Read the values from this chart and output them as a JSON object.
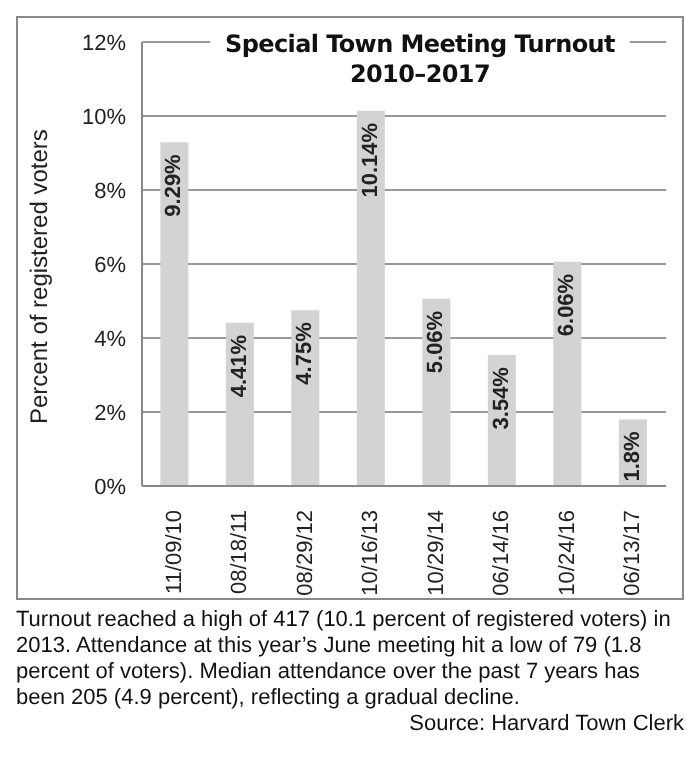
{
  "chart_data": {
    "type": "bar",
    "title": "Special Town Meeting Turnout",
    "subtitle": "2010–2017",
    "ylabel": "Percent of registered voters",
    "categories": [
      "11/09/10",
      "08/18/11",
      "08/29/12",
      "10/16/13",
      "10/29/14",
      "06/14/16",
      "10/24/16",
      "06/13/17"
    ],
    "values": [
      9.29,
      4.41,
      4.75,
      10.14,
      5.06,
      3.54,
      6.06,
      1.8
    ],
    "value_labels": [
      "9.29%",
      "4.41%",
      "4.75%",
      "10.14%",
      "5.06%",
      "3.54%",
      "6.06%",
      "1.8%"
    ],
    "color": "#d3d3d3",
    "ylim": [
      0,
      12
    ],
    "yticks": [
      {
        "value": 0,
        "label": "0%"
      },
      {
        "value": 2,
        "label": "2%"
      },
      {
        "value": 4,
        "label": "4%"
      },
      {
        "value": 6,
        "label": "6%"
      },
      {
        "value": 8,
        "label": "8%"
      },
      {
        "value": 10,
        "label": "10%"
      },
      {
        "value": 12,
        "label": "12%"
      }
    ],
    "grid": "y",
    "annotations": [
      "Turnout reached a high of 417 (10.1 percent of registered voters)  in 2013. Attendance at this year’s June meeting hit a low of 79 (1.8 percent of voters). Median attendance over the past 7 years has been 205 (4.9 percent), reflecting a gradual decline.",
      "Source: Harvard Town Clerk"
    ]
  }
}
